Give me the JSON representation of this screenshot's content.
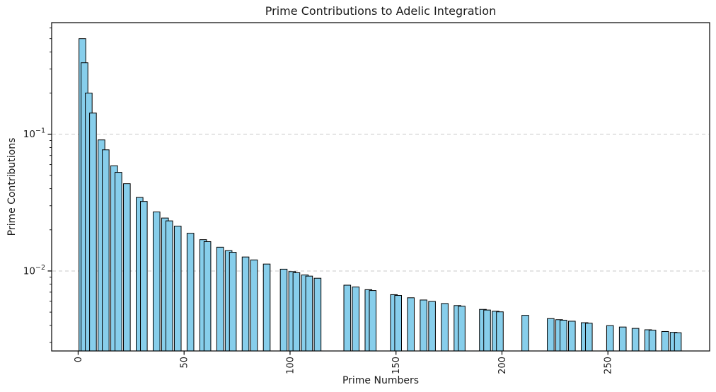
{
  "figure": {
    "background": "#ffffff"
  },
  "chart_data": {
    "type": "bar",
    "title": "Prime Contributions to Adelic Integration",
    "xlabel": "Prime Numbers",
    "ylabel": "Prime Contributions",
    "yscale": "log",
    "x": [
      2,
      3,
      5,
      7,
      11,
      13,
      17,
      19,
      23,
      29,
      31,
      37,
      41,
      43,
      47,
      53,
      59,
      61,
      67,
      71,
      73,
      79,
      83,
      89,
      97,
      101,
      103,
      107,
      109,
      113,
      127,
      131,
      137,
      139,
      149,
      151,
      157,
      163,
      167,
      173,
      179,
      181,
      191,
      193,
      197,
      199,
      211,
      223,
      227,
      229,
      233,
      239,
      241,
      251,
      257,
      263,
      269,
      271,
      277,
      281,
      283
    ],
    "values": [
      0.5,
      0.333333,
      0.2,
      0.142857,
      0.090909,
      0.076923,
      0.058824,
      0.052632,
      0.043478,
      0.034483,
      0.032258,
      0.027027,
      0.02439,
      0.023256,
      0.021277,
      0.018868,
      0.016949,
      0.016393,
      0.014925,
      0.014085,
      0.013699,
      0.012658,
      0.012048,
      0.011236,
      0.010309,
      0.009901,
      0.009709,
      0.009346,
      0.009174,
      0.00885,
      0.007874,
      0.007634,
      0.007299,
      0.007194,
      0.006711,
      0.006623,
      0.006369,
      0.006135,
      0.005988,
      0.00578,
      0.005587,
      0.005525,
      0.005236,
      0.005181,
      0.005076,
      0.005025,
      0.004739,
      0.004484,
      0.004405,
      0.004367,
      0.004292,
      0.004184,
      0.004149,
      0.003984,
      0.003891,
      0.003802,
      0.003717,
      0.00369,
      0.00361,
      0.003559,
      0.003534
    ],
    "values_note": "value = 1/p for each prime p",
    "bar_width_data_units": 3.2,
    "bar_color": "#87CEEB",
    "bar_edge_color": "#000000",
    "xlim": [
      -12.5,
      298
    ],
    "ylim": [
      0.0026,
      0.655
    ],
    "xticks": [
      0,
      50,
      100,
      150,
      200,
      250
    ],
    "xtick_rotation": 90,
    "ytick_exponents": [
      -1,
      -2
    ],
    "grid": {
      "axis": "y",
      "style": "dashed",
      "color": "#c9c9c9"
    },
    "legend": "none"
  }
}
